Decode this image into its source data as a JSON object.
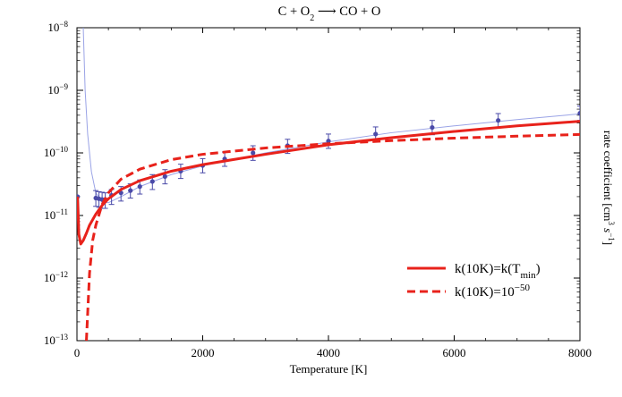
{
  "chart_data": {
    "type": "line",
    "title": {
      "pre": "C + O",
      "sub": "2",
      "post": " ⟶ CO + O"
    },
    "xlabel": "Temperature [K]",
    "ylabel": {
      "pre": "rate coefficient  [cm",
      "sup1": "3",
      "mid": " s",
      "sup2": "−1",
      "post": "]"
    },
    "xlim": [
      0,
      8000
    ],
    "ylim": [
      1e-13,
      1e-08
    ],
    "yscale": "log",
    "x_ticks": [
      0,
      2000,
      4000,
      6000,
      8000
    ],
    "y_ticks": [
      {
        "value": 1e-13,
        "base": "10",
        "exp": "−13"
      },
      {
        "value": 1e-12,
        "base": "10",
        "exp": "−12"
      },
      {
        "value": 1e-11,
        "base": "10",
        "exp": "−11"
      },
      {
        "value": 1e-10,
        "base": "10",
        "exp": "−10"
      },
      {
        "value": 1e-09,
        "base": "10",
        "exp": "−9"
      },
      {
        "value": 1e-08,
        "base": "10",
        "exp": "−8"
      }
    ],
    "legend_position": "lower-right",
    "series": [
      {
        "name": {
          "pre": "k(10K)=k(T",
          "sub": "min",
          "post": ")"
        },
        "style": "solid",
        "color": "#e8221b",
        "points": [
          [
            10,
            2e-11
          ],
          [
            30,
            5e-12
          ],
          [
            60,
            3.5e-12
          ],
          [
            100,
            4e-12
          ],
          [
            150,
            5.2e-12
          ],
          [
            200,
            7e-12
          ],
          [
            300,
            1.05e-11
          ],
          [
            400,
            1.45e-11
          ],
          [
            500,
            1.85e-11
          ],
          [
            700,
            2.6e-11
          ],
          [
            1000,
            3.6e-11
          ],
          [
            1500,
            5.1e-11
          ],
          [
            2000,
            6.5e-11
          ],
          [
            3000,
            9.5e-11
          ],
          [
            4000,
            1.35e-10
          ],
          [
            5000,
            1.75e-10
          ],
          [
            6000,
            2.2e-10
          ],
          [
            7000,
            2.7e-10
          ],
          [
            8000,
            3.2e-10
          ]
        ]
      },
      {
        "name": {
          "pre": "k(10K)=10",
          "sup": "−50",
          "post": ""
        },
        "style": "dashed",
        "color": "#e8221b",
        "points": [
          [
            150,
            1e-13
          ],
          [
            200,
            1.2e-12
          ],
          [
            250,
            4e-12
          ],
          [
            300,
            7e-12
          ],
          [
            400,
            1.5e-11
          ],
          [
            500,
            2.3e-11
          ],
          [
            700,
            3.8e-11
          ],
          [
            1000,
            5.5e-11
          ],
          [
            1500,
            7.8e-11
          ],
          [
            2000,
            9.5e-11
          ],
          [
            3000,
            1.2e-10
          ],
          [
            4000,
            1.4e-10
          ],
          [
            5000,
            1.57e-10
          ],
          [
            6000,
            1.72e-10
          ],
          [
            7000,
            1.85e-10
          ],
          [
            8000,
            1.97e-10
          ]
        ]
      },
      {
        "name": "",
        "style": "fit",
        "color": "#9aa3e6",
        "points": [
          [
            100,
            1e-08
          ],
          [
            130,
            1e-09
          ],
          [
            170,
            2e-10
          ],
          [
            230,
            5e-11
          ],
          [
            300,
            2.3e-11
          ],
          [
            400,
            1.65e-11
          ],
          [
            500,
            1.6e-11
          ],
          [
            700,
            2e-11
          ],
          [
            1000,
            2.9e-11
          ],
          [
            1500,
            4.5e-11
          ],
          [
            2000,
            6.2e-11
          ],
          [
            3000,
            1e-10
          ],
          [
            4000,
            1.5e-10
          ],
          [
            5000,
            2.1e-10
          ],
          [
            6000,
            2.7e-10
          ],
          [
            7000,
            3.4e-10
          ],
          [
            8000,
            4.2e-10
          ]
        ]
      },
      {
        "name": "",
        "style": "markers",
        "color": "#4a4aa8",
        "points": [
          {
            "x": 10,
            "y": 2e-11
          },
          {
            "x": 300,
            "y": 1.9e-11,
            "lo": 1.4e-11,
            "hi": 2.5e-11
          },
          {
            "x": 350,
            "y": 1.85e-11,
            "lo": 1.35e-11,
            "hi": 2.4e-11
          },
          {
            "x": 400,
            "y": 1.8e-11,
            "lo": 1.3e-11,
            "hi": 2.35e-11
          },
          {
            "x": 450,
            "y": 1.8e-11,
            "lo": 1.3e-11,
            "hi": 2.3e-11
          },
          {
            "x": 550,
            "y": 2.1e-11,
            "lo": 1.5e-11,
            "hi": 2.6e-11
          },
          {
            "x": 700,
            "y": 2.3e-11,
            "lo": 1.7e-11,
            "hi": 2.9e-11
          },
          {
            "x": 850,
            "y": 2.5e-11,
            "lo": 1.9e-11,
            "hi": 3.2e-11
          },
          {
            "x": 1000,
            "y": 2.9e-11,
            "lo": 2.2e-11,
            "hi": 3.7e-11
          },
          {
            "x": 1200,
            "y": 3.5e-11,
            "lo": 2.6e-11,
            "hi": 4.5e-11
          },
          {
            "x": 1400,
            "y": 4.2e-11,
            "lo": 3.2e-11,
            "hi": 5.4e-11
          },
          {
            "x": 1650,
            "y": 5.1e-11,
            "lo": 3.9e-11,
            "hi": 6.6e-11
          },
          {
            "x": 2000,
            "y": 6.3e-11,
            "lo": 4.8e-11,
            "hi": 8.1e-11
          },
          {
            "x": 2350,
            "y": 8e-11,
            "lo": 6.1e-11,
            "hi": 1.03e-10
          },
          {
            "x": 2800,
            "y": 1e-10,
            "lo": 7.6e-11,
            "hi": 1.3e-10
          },
          {
            "x": 3350,
            "y": 1.3e-10,
            "lo": 9.8e-11,
            "hi": 1.65e-10
          },
          {
            "x": 4000,
            "y": 1.55e-10,
            "lo": 1.18e-10,
            "hi": 2e-10
          },
          {
            "x": 4750,
            "y": 2e-10,
            "lo": 1.52e-10,
            "hi": 2.6e-10
          },
          {
            "x": 5650,
            "y": 2.55e-10,
            "lo": 1.95e-10,
            "hi": 3.3e-10
          },
          {
            "x": 6700,
            "y": 3.3e-10,
            "lo": 2.5e-10,
            "hi": 4.25e-10
          },
          {
            "x": 8000,
            "y": 4.3e-10,
            "lo": 3.3e-10,
            "hi": 5.6e-10
          }
        ]
      }
    ]
  }
}
